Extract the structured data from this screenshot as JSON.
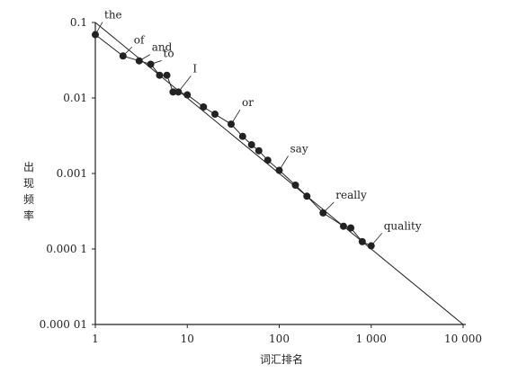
{
  "chart_data": {
    "type": "line",
    "xlabel": "词汇排名",
    "ylabel": "出现频率",
    "x_scale": "log",
    "y_scale": "log",
    "xlim": [
      1,
      10000
    ],
    "ylim": [
      1e-05,
      0.1
    ],
    "x_tick_values": [
      1,
      10,
      100,
      1000,
      10000
    ],
    "x_tick_labels": [
      "1",
      "10",
      "100",
      "1 000",
      "10 000"
    ],
    "y_tick_values": [
      0.1,
      0.01,
      0.001,
      0.0001,
      1e-05
    ],
    "y_tick_labels": [
      "0.1",
      "0.01",
      "0.001",
      "0.000 1",
      "0.000 01"
    ],
    "grid": false,
    "series": [
      {
        "values": [
          [
            1,
            0.069
          ],
          [
            2,
            0.036
          ],
          [
            3,
            0.031
          ],
          [
            4,
            0.028
          ],
          [
            5,
            0.02
          ],
          [
            6,
            0.02
          ],
          [
            7,
            0.012
          ],
          [
            8,
            0.012
          ],
          [
            10,
            0.011
          ],
          [
            15,
            0.0076
          ],
          [
            20,
            0.0061
          ],
          [
            30,
            0.0045
          ],
          [
            40,
            0.0031
          ],
          [
            50,
            0.0024
          ],
          [
            60,
            0.002
          ],
          [
            75,
            0.0015
          ],
          [
            100,
            0.0011
          ],
          [
            150,
            0.0007
          ],
          [
            200,
            0.0005
          ],
          [
            300,
            0.0003
          ],
          [
            500,
            0.0002
          ],
          [
            600,
            0.00019
          ],
          [
            800,
            0.000125
          ],
          [
            1000,
            0.00011
          ]
        ],
        "style": "line-with-markers"
      },
      {
        "values": [
          [
            1,
            0.1
          ],
          [
            10000,
            1e-05
          ]
        ],
        "style": "reference-line"
      }
    ],
    "annotations": [
      {
        "text": "the",
        "x": 1,
        "y": 0.069
      },
      {
        "text": "of",
        "x": 2,
        "y": 0.036
      },
      {
        "text": "and",
        "x": 3,
        "y": 0.031
      },
      {
        "text": "to",
        "x": 4,
        "y": 0.028
      },
      {
        "text": "I",
        "x": 8,
        "y": 0.012
      },
      {
        "text": "or",
        "x": 30,
        "y": 0.0045
      },
      {
        "text": "say",
        "x": 100,
        "y": 0.0011
      },
      {
        "text": "really",
        "x": 300,
        "y": 0.0003
      },
      {
        "text": "quality",
        "x": 1000,
        "y": 0.00011
      }
    ]
  }
}
